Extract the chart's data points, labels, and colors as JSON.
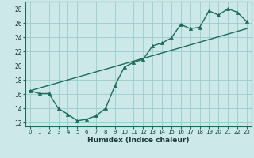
{
  "xlabel": "Humidex (Indice chaleur)",
  "xlim": [
    -0.5,
    23.5
  ],
  "ylim": [
    11.5,
    29.0
  ],
  "xticks": [
    0,
    1,
    2,
    3,
    4,
    5,
    6,
    7,
    8,
    9,
    10,
    11,
    12,
    13,
    14,
    15,
    16,
    17,
    18,
    19,
    20,
    21,
    22,
    23
  ],
  "yticks": [
    12,
    14,
    16,
    18,
    20,
    22,
    24,
    26,
    28
  ],
  "bg_color": "#cce8e8",
  "grid_color": "#99cccc",
  "line_color": "#1a6b5a",
  "line1_x": [
    0,
    1,
    2,
    3,
    4,
    5,
    6,
    7,
    8,
    9,
    10,
    11,
    12,
    13,
    14,
    15,
    16,
    17,
    18,
    19,
    20,
    21,
    22,
    23
  ],
  "line1_y": [
    16.5,
    16.1,
    16.1,
    14.0,
    13.2,
    12.3,
    12.5,
    13.0,
    14.0,
    17.2,
    19.8,
    20.5,
    20.9,
    22.8,
    23.2,
    23.9,
    25.8,
    25.2,
    25.4,
    27.7,
    27.1,
    28.0,
    27.5,
    26.2
  ],
  "line2_x": [
    0,
    23
  ],
  "line2_y": [
    16.5,
    25.2
  ],
  "marker": "^",
  "markersize": 3,
  "linewidth": 1.0,
  "xtick_fontsize": 5.0,
  "ytick_fontsize": 5.5,
  "xlabel_fontsize": 6.5
}
